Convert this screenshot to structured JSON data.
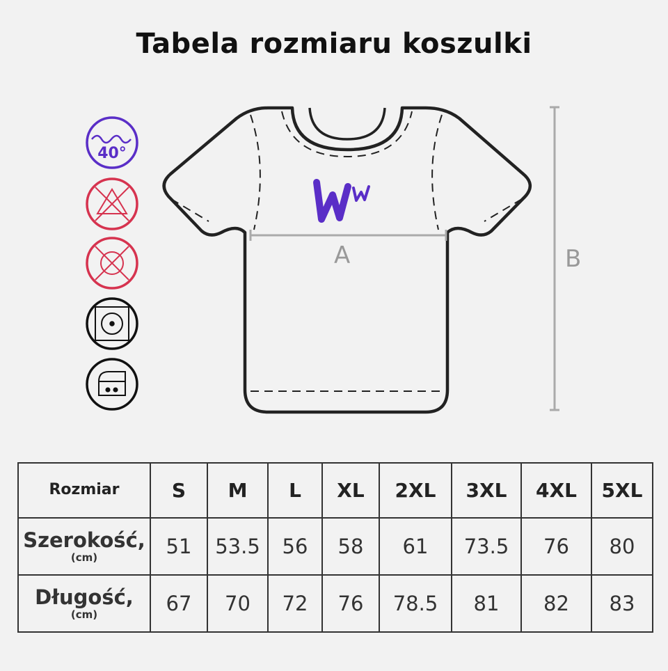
{
  "title": "Tabela rozmiaru koszulki",
  "diagram": {
    "label_a": "A",
    "label_b": "B",
    "logo_text": "Ww",
    "logo_color": "#5a2ec7"
  },
  "care_icons": [
    {
      "icon": "wash-40-icon",
      "text": "40°",
      "color": "#5a2ec7"
    },
    {
      "icon": "no-bleach-icon",
      "color": "#d6334f"
    },
    {
      "icon": "no-tumble-dry-icon",
      "color": "#d6334f"
    },
    {
      "icon": "tumble-dry-icon",
      "color": "#111111"
    },
    {
      "icon": "iron-medium-icon",
      "color": "#111111"
    }
  ],
  "table": {
    "header_label": "Rozmiar",
    "sizes": [
      "S",
      "M",
      "L",
      "XL",
      "2XL",
      "3XL",
      "4XL",
      "5XL"
    ],
    "rows": [
      {
        "label": "Szerokość,",
        "unit": "(cm)",
        "values": [
          "51",
          "53.5",
          "56",
          "58",
          "61",
          "73.5",
          "76",
          "80"
        ]
      },
      {
        "label": "Długość,",
        "unit": "(cm)",
        "values": [
          "67",
          "70",
          "72",
          "76",
          "78.5",
          "81",
          "82",
          "83"
        ]
      }
    ]
  }
}
